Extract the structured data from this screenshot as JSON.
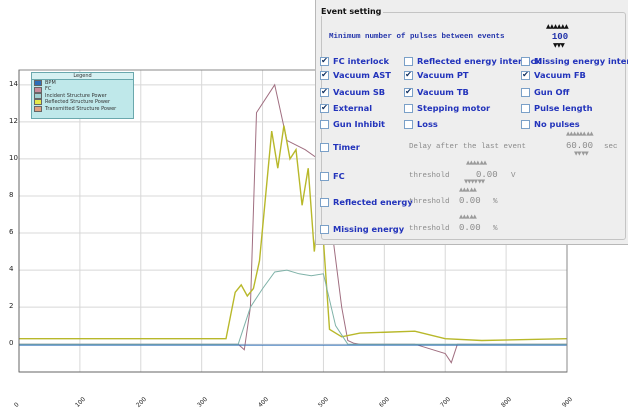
{
  "chart_data": {
    "type": "line",
    "y_ticks": [
      "14",
      "12",
      "10",
      "8",
      "6",
      "4",
      "2",
      "0"
    ],
    "x_ticks": [
      "0",
      "100",
      "200",
      "300",
      "400",
      "500",
      "600",
      "700",
      "800",
      "900"
    ],
    "ylim": [
      -1.5,
      14.8
    ],
    "grid": true,
    "legend": {
      "title": "Legend",
      "placement": "top-left",
      "entries": [
        {
          "name": "BPM",
          "color": "#2f6fb8"
        },
        {
          "name": "FC",
          "color": "#c88a9a"
        },
        {
          "name": "Incident Structure Power",
          "color": "#9fd0cf"
        },
        {
          "name": "Reflected Structure Power",
          "color": "#e5e84a"
        },
        {
          "name": "Transmitted Structure Power",
          "color": "#e0a080"
        }
      ]
    },
    "series": [
      {
        "name": "FC",
        "color": "#a06e80",
        "x": [
          0,
          300,
          360,
          370,
          380,
          390,
          420,
          440,
          470,
          500,
          530,
          540,
          550,
          560,
          580,
          650,
          700,
          710,
          720,
          800,
          900
        ],
        "y": [
          0,
          0,
          0,
          -0.3,
          2.0,
          12.5,
          14.0,
          11.0,
          10.5,
          9.8,
          2.0,
          0.2,
          0.05,
          0,
          0,
          0,
          -0.5,
          -1.0,
          0,
          0,
          0
        ]
      },
      {
        "name": "Reflected Structure Power",
        "color": "#b8b82a",
        "x": [
          0,
          340,
          355,
          365,
          375,
          385,
          395,
          405,
          415,
          425,
          435,
          445,
          455,
          465,
          475,
          485,
          495,
          510,
          530,
          560,
          650,
          700,
          760,
          900
        ],
        "y": [
          0.3,
          0.3,
          2.8,
          3.2,
          2.6,
          3.0,
          4.5,
          8.0,
          11.5,
          9.5,
          11.8,
          10.0,
          10.5,
          7.5,
          9.5,
          5.0,
          8.0,
          0.8,
          0.4,
          0.6,
          0.7,
          0.3,
          0.2,
          0.3
        ]
      },
      {
        "name": "Incident Structure Power",
        "color": "#7fb2a8",
        "x": [
          0,
          360,
          380,
          400,
          420,
          440,
          460,
          480,
          500,
          520,
          540,
          900
        ],
        "y": [
          0,
          0,
          2.0,
          3.0,
          3.9,
          4.0,
          3.8,
          3.7,
          3.8,
          1.0,
          0,
          0
        ]
      },
      {
        "name": "BPM",
        "color": "#2f6fb8",
        "x": [
          0,
          900
        ],
        "y": [
          -0.05,
          -0.05
        ]
      }
    ]
  },
  "event_setting": {
    "title": "Event setting",
    "min_pulses_label": "Minimum number of pulses between events",
    "min_pulses_value": "100",
    "checkboxes": [
      {
        "label": "FC interlock",
        "checked": true
      },
      {
        "label": "Reflected energy interlock",
        "checked": false
      },
      {
        "label": "Missing energy interlock",
        "checked": false
      },
      {
        "label": "Vacuum AST",
        "checked": true
      },
      {
        "label": "Vacuum PT",
        "checked": true
      },
      {
        "label": "Vacuum FB",
        "checked": true
      },
      {
        "label": "Vacuum SB",
        "checked": true
      },
      {
        "label": "Vacuum TB",
        "checked": true
      },
      {
        "label": "Gun Off",
        "checked": false
      },
      {
        "label": "External",
        "checked": true
      },
      {
        "label": "Stepping motor",
        "checked": false
      },
      {
        "label": "Pulse length",
        "checked": false
      },
      {
        "label": "Gun Inhibit",
        "checked": false
      },
      {
        "label": "Loss",
        "checked": false
      },
      {
        "label": "No pulses",
        "checked": false
      }
    ],
    "timer": {
      "label": "Timer",
      "text": "Delay after the last event",
      "value": "60.00",
      "unit": "sec"
    },
    "fc": {
      "label": "FC",
      "text": "threshold",
      "value": "0.00",
      "unit": "V"
    },
    "reflected": {
      "label": "Reflected energy",
      "text": "threshold",
      "value": "0.00",
      "unit": "%"
    },
    "missing": {
      "label": "Missing energy",
      "text": "threshold",
      "value": "0.00",
      "unit": "%"
    }
  }
}
